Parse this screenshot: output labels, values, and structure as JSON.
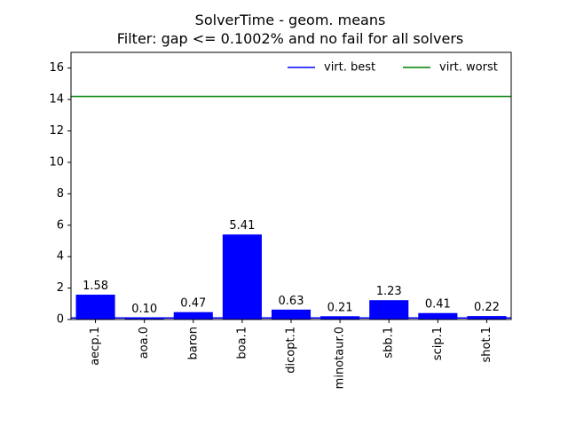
{
  "chart_data": {
    "type": "bar",
    "title": "SolverTime - geom. means",
    "subtitle": "Filter: gap <= 0.1002% and no fail for all solvers",
    "categories": [
      "aecp.1",
      "aoa.0",
      "baron",
      "boa.1",
      "dicopt.1",
      "minotaur.0",
      "sbb.1",
      "scip.1",
      "shot.1"
    ],
    "values": [
      1.58,
      0.1,
      0.47,
      5.41,
      0.63,
      0.21,
      1.23,
      0.41,
      0.22
    ],
    "value_labels": [
      "1.58",
      "0.10",
      "0.47",
      "5.41",
      "0.63",
      "0.21",
      "1.23",
      "0.41",
      "0.22"
    ],
    "bar_color": "#0000ff",
    "ylim": [
      0,
      17
    ],
    "yticks": [
      "0",
      "2",
      "4",
      "6",
      "8",
      "10",
      "12",
      "14",
      "16"
    ],
    "xlabel": "",
    "ylabel": "",
    "reference_lines": [
      {
        "name": "virt. best",
        "value": 0.1,
        "color": "#0000ff"
      },
      {
        "name": "virt. worst",
        "value": 14.2,
        "color": "#008000"
      }
    ],
    "legend_position": "top-right",
    "grid": false
  }
}
